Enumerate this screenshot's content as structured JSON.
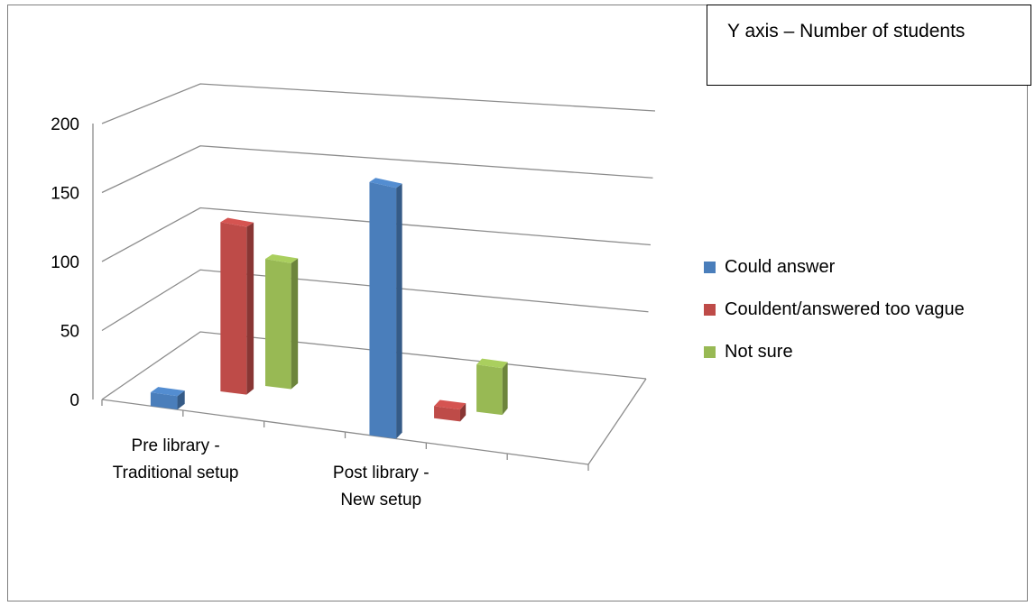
{
  "annotation": "Y axis – Number of students",
  "chart_data": {
    "type": "bar",
    "title": "",
    "xlabel": "",
    "ylabel": "",
    "categories": [
      [
        "Pre library -",
        "Traditional setup"
      ],
      [
        "Post library -",
        "New setup"
      ]
    ],
    "series": [
      {
        "name": "Could answer",
        "color": "#4a7ebb",
        "values": [
          10,
          200
        ]
      },
      {
        "name": "Couldent/answered too vague",
        "color": "#be4b48",
        "values": [
          130,
          10
        ]
      },
      {
        "name": "Not sure",
        "color": "#98b954",
        "values": [
          100,
          40
        ]
      }
    ],
    "y_ticks": [
      0,
      50,
      100,
      150,
      200
    ],
    "ylim": [
      0,
      200
    ],
    "grid": true,
    "legend_position": "right",
    "projection": "3d-perspective"
  }
}
